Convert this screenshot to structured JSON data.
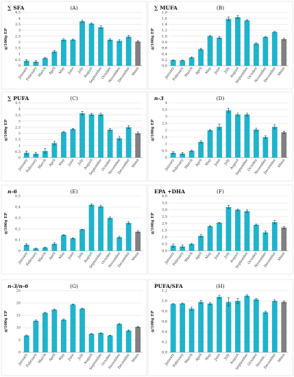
{
  "colors": {
    "bar": "#1fb3cc",
    "mean_bar": "#808080",
    "grid": "#d9d9d9"
  },
  "chart_data": [
    {
      "type": "bar",
      "title": "∑ SFA",
      "letter": "(A)",
      "ylabel": "g/100g EP",
      "ylim": [
        0,
        4.5
      ],
      "yticks": [
        0,
        0.5,
        1,
        1.5,
        2,
        2.5,
        3,
        3.5,
        4,
        4.5
      ],
      "ytick_labels": [
        "0",
        "0,5",
        "1",
        "1,5",
        "2",
        "2,5",
        "3",
        "3,5",
        "4",
        "4,5"
      ],
      "categories": [
        "January",
        "February",
        "March",
        "April",
        "May",
        "June",
        "July",
        "August",
        "September",
        "October",
        "November",
        "December",
        "Mean"
      ],
      "values": [
        0.42,
        0.35,
        0.65,
        1.2,
        2.2,
        2.2,
        3.75,
        3.55,
        3.25,
        2.2,
        2.1,
        2.45,
        2.05
      ],
      "errors": [
        0.1,
        0.08,
        0.05,
        0.1,
        0.08,
        0.05,
        0.1,
        0.05,
        0.12,
        0.1,
        0.1,
        0.1,
        0.08
      ]
    },
    {
      "type": "bar",
      "title": "∑ MUFA",
      "letter": "(B)",
      "ylabel": "g/100g EP",
      "ylim": [
        0,
        1.8
      ],
      "yticks": [
        0,
        0.2,
        0.4,
        0.6,
        0.8,
        1.0,
        1.2,
        1.4,
        1.6,
        1.8
      ],
      "ytick_labels": [
        "0,0",
        "0,2",
        "0,4",
        "0,6",
        "0,8",
        "1,0",
        "1,2",
        "1,4",
        "1,6",
        "1,8"
      ],
      "categories": [
        "January",
        "February",
        "March",
        "April",
        "May",
        "June",
        "July",
        "August",
        "September",
        "October",
        "November",
        "December",
        "Mean"
      ],
      "values": [
        0.19,
        0.18,
        0.28,
        0.56,
        1.0,
        0.95,
        1.58,
        1.64,
        1.53,
        0.75,
        0.97,
        1.14,
        0.9
      ],
      "errors": [
        0.01,
        0.01,
        0.02,
        0.03,
        0.02,
        0.04,
        0.06,
        0.05,
        0.02,
        0.02,
        0.02,
        0.02,
        0.03
      ]
    },
    {
      "type": "bar",
      "title": "∑ PUFA",
      "letter": "(C)",
      "ylabel": "g/100g EP",
      "ylim": [
        0,
        4.5
      ],
      "yticks": [
        0,
        0.5,
        1,
        1.5,
        2,
        2.5,
        3,
        3.5,
        4,
        4.5
      ],
      "ytick_labels": [
        "0",
        "0,5",
        "1",
        "1,5",
        "2",
        "2,5",
        "3",
        "3,5",
        "4",
        "4,5"
      ],
      "categories": [
        "January",
        "February",
        "March",
        "April",
        "May",
        "June",
        "July",
        "August",
        "September",
        "October",
        "November",
        "December",
        "Mean"
      ],
      "values": [
        0.4,
        0.32,
        0.55,
        1.2,
        2.1,
        2.35,
        3.65,
        3.55,
        3.55,
        2.3,
        1.6,
        2.5,
        2.0
      ],
      "errors": [
        0.15,
        0.1,
        0.2,
        0.15,
        0.05,
        0.05,
        0.15,
        0.08,
        0.1,
        0.1,
        0.15,
        0.12,
        0.1
      ]
    },
    {
      "type": "bar",
      "title": "n-3",
      "letter": "(D)",
      "ylabel": "g/100g EP",
      "ylim": [
        0,
        4.0
      ],
      "yticks": [
        0,
        0.5,
        1,
        1.5,
        2,
        2.5,
        3,
        3.5,
        4
      ],
      "ytick_labels": [
        "0",
        "0,5",
        "1",
        "1,5",
        "2",
        "2,5",
        "3",
        "3,5",
        "4"
      ],
      "categories": [
        "January",
        "February",
        "March",
        "April",
        "May",
        "June",
        "July",
        "August",
        "September",
        "October",
        "November",
        "December",
        "Mean"
      ],
      "values": [
        0.35,
        0.3,
        0.5,
        1.15,
        2.0,
        2.25,
        3.45,
        3.15,
        3.15,
        2.05,
        1.5,
        2.25,
        1.85
      ],
      "errors": [
        0.08,
        0.08,
        0.05,
        0.08,
        0.05,
        0.2,
        0.15,
        0.1,
        0.1,
        0.1,
        0.1,
        0.15,
        0.08
      ]
    },
    {
      "type": "bar",
      "title": "n-6",
      "letter": "(E)",
      "ylabel": "g/100g EP",
      "ylim": [
        0,
        0.5
      ],
      "yticks": [
        0,
        0.1,
        0.2,
        0.3,
        0.4,
        0.5
      ],
      "ytick_labels": [
        "0",
        "0,1",
        "0,2",
        "0,3",
        "0,4",
        "0,5"
      ],
      "categories": [
        "January",
        "February",
        "March",
        "April",
        "May",
        "June",
        "July",
        "August",
        "September",
        "October",
        "November",
        "December",
        "Mean"
      ],
      "values": [
        0.055,
        0.022,
        0.03,
        0.065,
        0.145,
        0.115,
        0.195,
        0.42,
        0.405,
        0.3,
        0.125,
        0.255,
        0.175
      ],
      "errors": [
        0.01,
        0.003,
        0.005,
        0.01,
        0.003,
        0.003,
        0.003,
        0.01,
        0.01,
        0.01,
        0.01,
        0.01,
        0.008
      ]
    },
    {
      "type": "bar",
      "title": "EPA +DHA",
      "letter": "(F)",
      "ylabel": "g/100g EP",
      "ylim": [
        0,
        4.0
      ],
      "yticks": [
        0,
        0.5,
        1,
        1.5,
        2,
        2.5,
        3,
        3.5,
        4
      ],
      "ytick_labels": [
        "0,0",
        "0,5",
        "1,0",
        "1,5",
        "2,0",
        "2,5",
        "3,0",
        "3,5",
        "4,0"
      ],
      "categories": [
        "January",
        "February",
        "March",
        "April",
        "May",
        "June",
        "July",
        "August",
        "September",
        "October",
        "November",
        "December",
        "Mean"
      ],
      "values": [
        0.38,
        0.32,
        0.5,
        1.1,
        1.8,
        2.05,
        3.2,
        3.0,
        2.9,
        1.9,
        1.35,
        2.1,
        1.7
      ],
      "errors": [
        0.12,
        0.1,
        0.05,
        0.1,
        0.05,
        0.03,
        0.12,
        0.05,
        0.1,
        0.05,
        0.1,
        0.12,
        0.08
      ]
    },
    {
      "type": "bar",
      "title": "n-3/n-6",
      "letter": "(G)",
      "ylabel": "g/100g EP",
      "ylim": [
        0,
        25
      ],
      "yticks": [
        0,
        5,
        10,
        15,
        20,
        25
      ],
      "ytick_labels": [
        "0",
        "5",
        "10",
        "15",
        "20",
        "25"
      ],
      "categories": [
        "January",
        "February",
        "March",
        "April",
        "May",
        "June",
        "July",
        "August",
        "September",
        "October",
        "November",
        "December",
        "Mean"
      ],
      "values": [
        6.8,
        12.8,
        16.0,
        17.3,
        13.2,
        19.4,
        17.7,
        7.5,
        7.8,
        6.8,
        11.5,
        8.8,
        10.3
      ],
      "errors": [
        0.2,
        0.3,
        0.2,
        0.2,
        0.3,
        0.1,
        0.2,
        0.1,
        0.1,
        0.1,
        0.2,
        0.3,
        0.2
      ]
    },
    {
      "type": "bar",
      "title": "PUFA/SFA",
      "letter": "(H)",
      "ylabel": "g/100g EP",
      "ylim": [
        0,
        1.2
      ],
      "yticks": [
        0,
        0.2,
        0.4,
        0.6,
        0.8,
        1.0,
        1.2
      ],
      "ytick_labels": [
        "0,0",
        "0,2",
        "0,4",
        "0,6",
        "0,8",
        "1,0",
        "1,2"
      ],
      "categories": [
        "January",
        "February",
        "March",
        "April",
        "May",
        "June",
        "July",
        "August",
        "September",
        "October",
        "Novem...",
        "December",
        "Mean"
      ],
      "values": [
        0.94,
        0.95,
        0.85,
        0.98,
        0.95,
        1.08,
        0.98,
        1.0,
        1.1,
        1.03,
        0.78,
        1.0,
        0.98
      ],
      "errors": [
        0.01,
        0.01,
        0.03,
        0.03,
        0.02,
        0.03,
        0.08,
        0.05,
        0.02,
        0.02,
        0.02,
        0.02,
        0.02
      ]
    }
  ]
}
